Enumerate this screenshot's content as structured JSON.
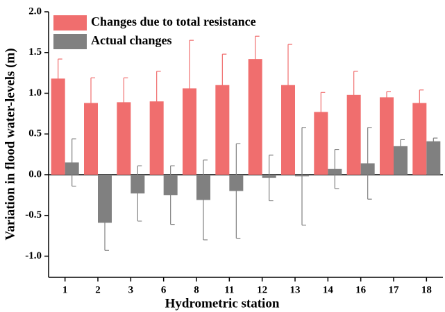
{
  "chart_data": {
    "type": "bar",
    "x_label": "Hydrometric station",
    "y_label": "Variation in flood water-levels (m)",
    "categories": [
      "1",
      "2",
      "3",
      "6",
      "8",
      "11",
      "12",
      "13",
      "14",
      "16",
      "17",
      "18"
    ],
    "series": [
      {
        "name": "Changes due to total resistance",
        "color": "#f06e6e",
        "values": [
          1.18,
          0.88,
          0.89,
          0.9,
          1.06,
          1.1,
          1.42,
          1.1,
          0.77,
          0.98,
          0.95,
          0.88
        ],
        "errors": [
          0.24,
          0.31,
          0.3,
          0.37,
          0.59,
          0.38,
          0.28,
          0.5,
          0.24,
          0.29,
          0.07,
          0.16
        ]
      },
      {
        "name": "Actual changes",
        "color": "#808080",
        "values": [
          0.15,
          -0.59,
          -0.23,
          -0.25,
          -0.31,
          -0.2,
          -0.04,
          -0.02,
          0.07,
          0.14,
          0.35,
          0.41
        ],
        "errors": [
          0.29,
          0.34,
          0.34,
          0.36,
          0.49,
          0.58,
          0.28,
          0.6,
          0.24,
          0.44,
          0.08,
          0.04
        ]
      }
    ],
    "ylim": [
      -1.26,
      2.0
    ],
    "yticks": [
      {
        "value": -1.0,
        "label": "-1.0"
      },
      {
        "value": -0.5,
        "label": "-0.5"
      },
      {
        "value": 0.0,
        "label": "0.0"
      },
      0.5,
      {
        "value": 1.0,
        "label": "1.0"
      },
      1.5,
      {
        "value": 2.0,
        "label": "2.0"
      }
    ],
    "legend": "upper-left"
  }
}
